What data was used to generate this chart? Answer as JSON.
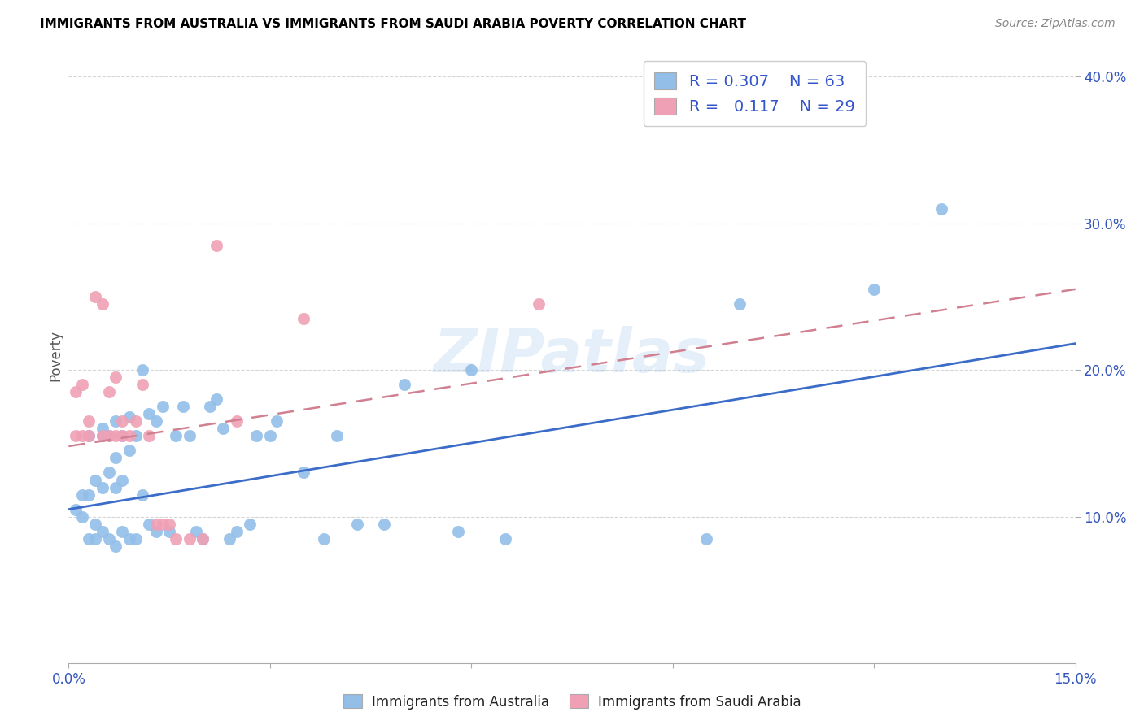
{
  "title": "IMMIGRANTS FROM AUSTRALIA VS IMMIGRANTS FROM SAUDI ARABIA POVERTY CORRELATION CHART",
  "source": "Source: ZipAtlas.com",
  "ylabel": "Poverty",
  "xlim": [
    0.0,
    0.15
  ],
  "ylim": [
    0.0,
    0.42
  ],
  "x_ticks": [
    0.0,
    0.03,
    0.06,
    0.09,
    0.12,
    0.15
  ],
  "x_tick_labels": [
    "0.0%",
    "",
    "",
    "",
    "",
    "15.0%"
  ],
  "y_ticks": [
    0.1,
    0.2,
    0.3,
    0.4
  ],
  "y_tick_labels": [
    "10.0%",
    "20.0%",
    "30.0%",
    "40.0%"
  ],
  "australia_color": "#92BEE8",
  "saudi_color": "#F0A0B5",
  "australia_line_color": "#3B6CC8",
  "saudi_line_color": "#D08090",
  "watermark": "ZIPatlas",
  "legend_R_aus": "0.307",
  "legend_N_aus": "63",
  "legend_R_sau": "0.117",
  "legend_N_sau": "29",
  "aus_trend_x0": 0.0,
  "aus_trend_y0": 0.105,
  "aus_trend_x1": 0.15,
  "aus_trend_y1": 0.218,
  "sau_trend_x0": 0.0,
  "sau_trend_y0": 0.148,
  "sau_trend_x1": 0.15,
  "sau_trend_y1": 0.255,
  "australia_x": [
    0.001,
    0.002,
    0.002,
    0.003,
    0.003,
    0.003,
    0.004,
    0.004,
    0.004,
    0.005,
    0.005,
    0.005,
    0.005,
    0.006,
    0.006,
    0.006,
    0.007,
    0.007,
    0.007,
    0.007,
    0.008,
    0.008,
    0.008,
    0.009,
    0.009,
    0.009,
    0.01,
    0.01,
    0.011,
    0.011,
    0.012,
    0.012,
    0.013,
    0.013,
    0.014,
    0.015,
    0.016,
    0.017,
    0.018,
    0.019,
    0.02,
    0.021,
    0.022,
    0.023,
    0.024,
    0.025,
    0.027,
    0.028,
    0.03,
    0.031,
    0.035,
    0.038,
    0.04,
    0.043,
    0.047,
    0.05,
    0.058,
    0.06,
    0.065,
    0.095,
    0.1,
    0.12,
    0.13
  ],
  "australia_y": [
    0.105,
    0.115,
    0.1,
    0.155,
    0.115,
    0.085,
    0.125,
    0.095,
    0.085,
    0.16,
    0.155,
    0.12,
    0.09,
    0.155,
    0.13,
    0.085,
    0.165,
    0.14,
    0.12,
    0.08,
    0.155,
    0.125,
    0.09,
    0.168,
    0.145,
    0.085,
    0.155,
    0.085,
    0.2,
    0.115,
    0.095,
    0.17,
    0.165,
    0.09,
    0.175,
    0.09,
    0.155,
    0.175,
    0.155,
    0.09,
    0.085,
    0.175,
    0.18,
    0.16,
    0.085,
    0.09,
    0.095,
    0.155,
    0.155,
    0.165,
    0.13,
    0.085,
    0.155,
    0.095,
    0.095,
    0.19,
    0.09,
    0.2,
    0.085,
    0.085,
    0.245,
    0.255,
    0.31
  ],
  "saudi_x": [
    0.001,
    0.001,
    0.002,
    0.002,
    0.003,
    0.003,
    0.004,
    0.005,
    0.005,
    0.006,
    0.006,
    0.007,
    0.007,
    0.008,
    0.008,
    0.009,
    0.01,
    0.011,
    0.012,
    0.013,
    0.014,
    0.015,
    0.016,
    0.018,
    0.02,
    0.022,
    0.025,
    0.035,
    0.07
  ],
  "saudi_y": [
    0.155,
    0.185,
    0.155,
    0.19,
    0.155,
    0.165,
    0.25,
    0.155,
    0.245,
    0.155,
    0.185,
    0.195,
    0.155,
    0.155,
    0.165,
    0.155,
    0.165,
    0.19,
    0.155,
    0.095,
    0.095,
    0.095,
    0.085,
    0.085,
    0.085,
    0.285,
    0.165,
    0.235,
    0.245
  ]
}
